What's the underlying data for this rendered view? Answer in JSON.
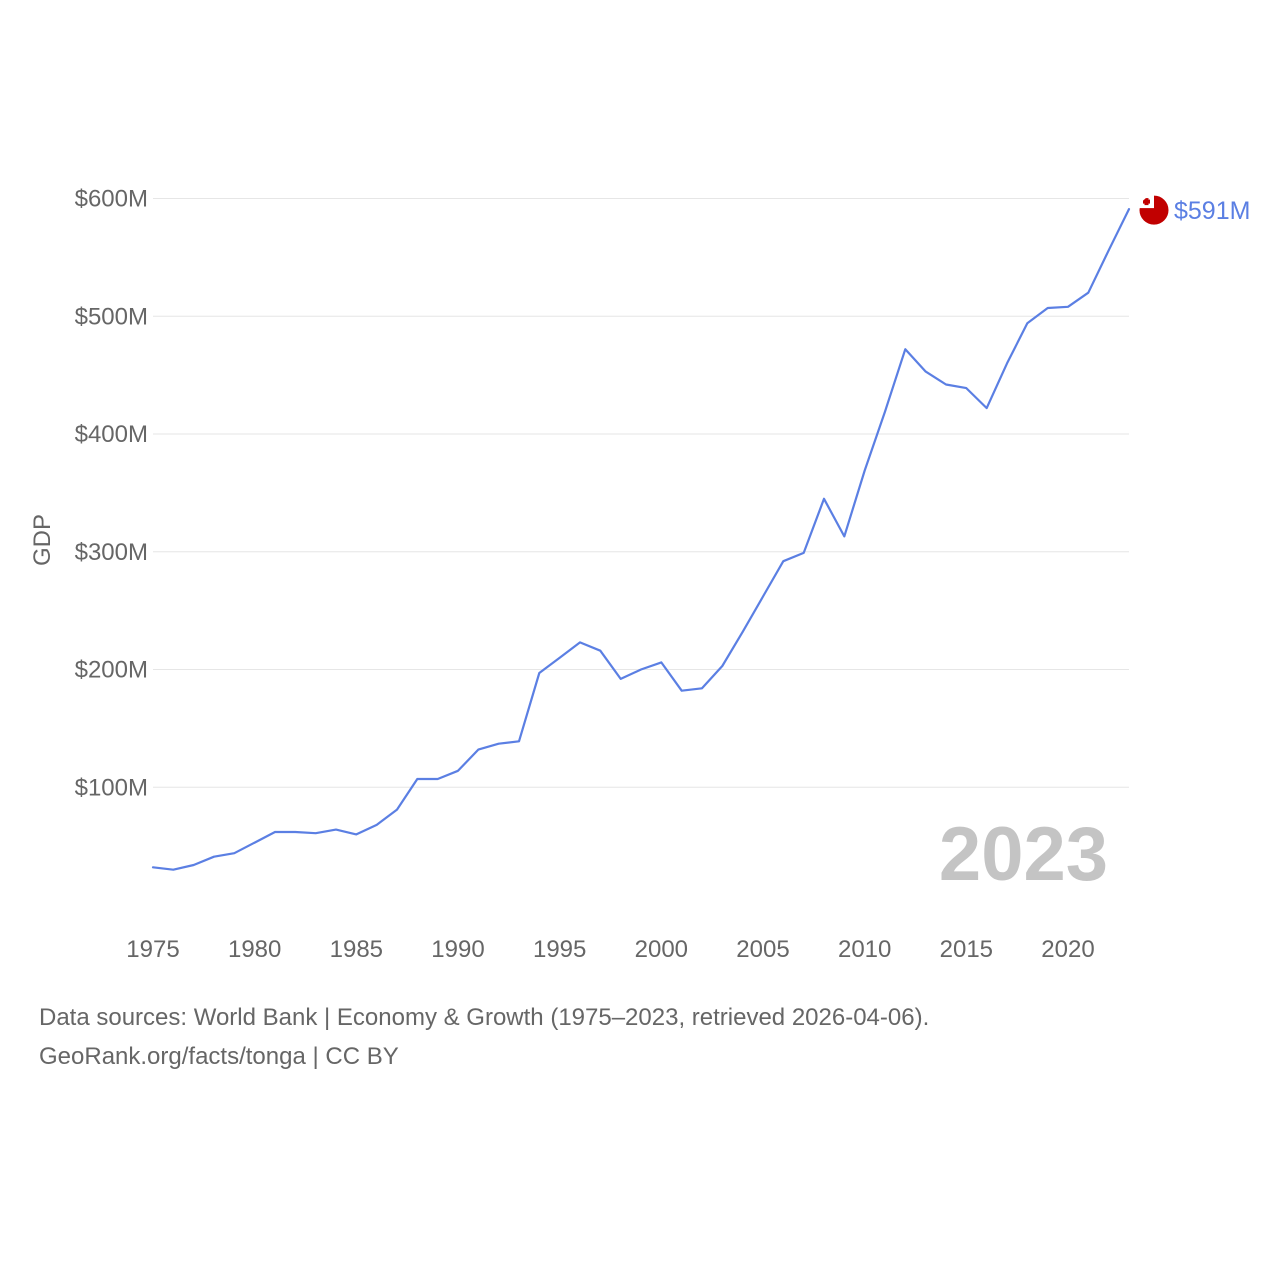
{
  "chart_data": {
    "type": "line",
    "title": "",
    "xlabel": "",
    "ylabel": "GDP",
    "xlim": [
      1975,
      2023
    ],
    "ylim": [
      0,
      600
    ],
    "y_unit": "millions USD",
    "y_ticks": [
      100,
      200,
      300,
      400,
      500,
      600
    ],
    "y_tick_labels": [
      "$100M",
      "$200M",
      "$300M",
      "$400M",
      "$500M",
      "$600M"
    ],
    "x_ticks": [
      1975,
      1980,
      1985,
      1990,
      1995,
      2000,
      2005,
      2010,
      2015,
      2020
    ],
    "x_tick_labels": [
      "1975",
      "1980",
      "1985",
      "1990",
      "1995",
      "2000",
      "2005",
      "2010",
      "2015",
      "2020"
    ],
    "grid": true,
    "series": [
      {
        "name": "Tonga",
        "color": "#5b7fe3",
        "x": [
          1975,
          1976,
          1977,
          1978,
          1979,
          1980,
          1981,
          1982,
          1983,
          1984,
          1985,
          1986,
          1987,
          1988,
          1989,
          1990,
          1991,
          1992,
          1993,
          1994,
          1995,
          1996,
          1997,
          1998,
          1999,
          2000,
          2001,
          2002,
          2003,
          2004,
          2005,
          2006,
          2007,
          2008,
          2009,
          2010,
          2011,
          2012,
          2013,
          2014,
          2015,
          2016,
          2017,
          2018,
          2019,
          2020,
          2021,
          2022,
          2023
        ],
        "values": [
          32,
          30,
          34,
          41,
          44,
          53,
          62,
          62,
          61,
          64,
          60,
          68,
          81,
          107,
          107,
          114,
          132,
          137,
          139,
          197,
          210,
          223,
          216,
          192,
          200,
          206,
          182,
          184,
          203,
          232,
          262,
          292,
          299,
          345,
          313,
          369,
          419,
          472,
          453,
          442,
          439,
          422,
          460,
          494,
          507,
          508,
          520,
          556,
          591
        ]
      }
    ],
    "end_label": "$591M",
    "end_marker": {
      "kind": "flag",
      "country": "Tonga",
      "flag_red": "#c10000",
      "flag_white": "#ffffff"
    },
    "year_watermark": "2023"
  },
  "footer": {
    "sources": "Data sources: World Bank | Economy & Growth (1975–2023, retrieved 2026-04-06).",
    "credit": "GeoRank.org/facts/tonga | CC BY"
  }
}
